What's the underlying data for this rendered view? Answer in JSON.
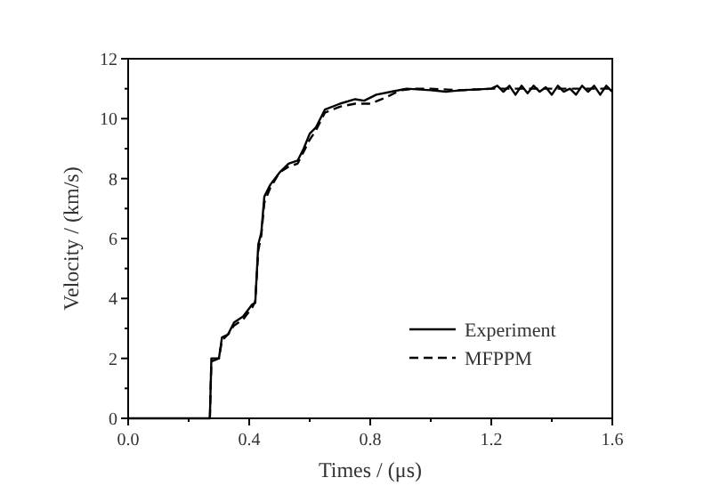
{
  "chart_data": {
    "type": "line",
    "xlabel": "Times / (μs)",
    "ylabel": "Velocity / (km/s)",
    "xlim": [
      0,
      1.6
    ],
    "ylim": [
      0,
      12
    ],
    "xticks": [
      {
        "value": 0,
        "label": "0.0"
      },
      {
        "value": 0.4,
        "label": "0.4"
      },
      {
        "value": 0.8,
        "label": "0.8"
      },
      {
        "value": 1.2,
        "label": "1.2"
      },
      {
        "value": 1.6,
        "label": "1.6"
      }
    ],
    "yticks": [
      0,
      2,
      4,
      6,
      8,
      10,
      12
    ],
    "legend": "bottom right",
    "grid": false,
    "series": [
      {
        "name": "Experiment",
        "color": "#000000",
        "line_style": "solid",
        "x": [
          0,
          0.27,
          0.275,
          0.3,
          0.31,
          0.33,
          0.35,
          0.38,
          0.41,
          0.42,
          0.43,
          0.44,
          0.45,
          0.47,
          0.5,
          0.53,
          0.56,
          0.58,
          0.6,
          0.62,
          0.65,
          0.7,
          0.75,
          0.78,
          0.82,
          0.87,
          0.92,
          1.0,
          1.05,
          1.1,
          1.2,
          1.22,
          1.24,
          1.26,
          1.28,
          1.3,
          1.32,
          1.34,
          1.36,
          1.38,
          1.4,
          1.42,
          1.44,
          1.46,
          1.48,
          1.5,
          1.52,
          1.54,
          1.56,
          1.58,
          1.6
        ],
        "values": [
          0,
          0,
          2,
          2,
          2.7,
          2.8,
          3.2,
          3.4,
          3.8,
          3.85,
          5.8,
          6.2,
          7.4,
          7.8,
          8.2,
          8.5,
          8.6,
          9.0,
          9.5,
          9.7,
          10.3,
          10.5,
          10.65,
          10.6,
          10.8,
          10.9,
          11.0,
          10.95,
          10.9,
          10.95,
          11.0,
          11.1,
          10.9,
          11.1,
          10.8,
          11.1,
          10.85,
          11.1,
          10.9,
          11.05,
          10.8,
          11.1,
          10.9,
          11.0,
          10.8,
          11.1,
          10.9,
          11.1,
          10.8,
          11.1,
          10.9
        ]
      },
      {
        "name": "MFPPM",
        "color": "#000000",
        "line_style": "dashed",
        "x": [
          0.27,
          0.275,
          0.3,
          0.31,
          0.33,
          0.35,
          0.38,
          0.41,
          0.42,
          0.43,
          0.44,
          0.45,
          0.47,
          0.5,
          0.53,
          0.56,
          0.58,
          0.6,
          0.62,
          0.65,
          0.7,
          0.75,
          0.8,
          0.85,
          0.9,
          0.95,
          1.0,
          1.1,
          1.2,
          1.3,
          1.4,
          1.5,
          1.6
        ],
        "values": [
          0,
          1.9,
          2,
          2.6,
          2.8,
          3.1,
          3.3,
          3.7,
          3.9,
          5.6,
          6.1,
          7.2,
          7.7,
          8.2,
          8.4,
          8.5,
          8.9,
          9.3,
          9.6,
          10.2,
          10.4,
          10.5,
          10.5,
          10.7,
          10.95,
          11.0,
          11.0,
          10.95,
          11.0,
          11.0,
          11.0,
          11.0,
          11.0
        ]
      }
    ]
  }
}
